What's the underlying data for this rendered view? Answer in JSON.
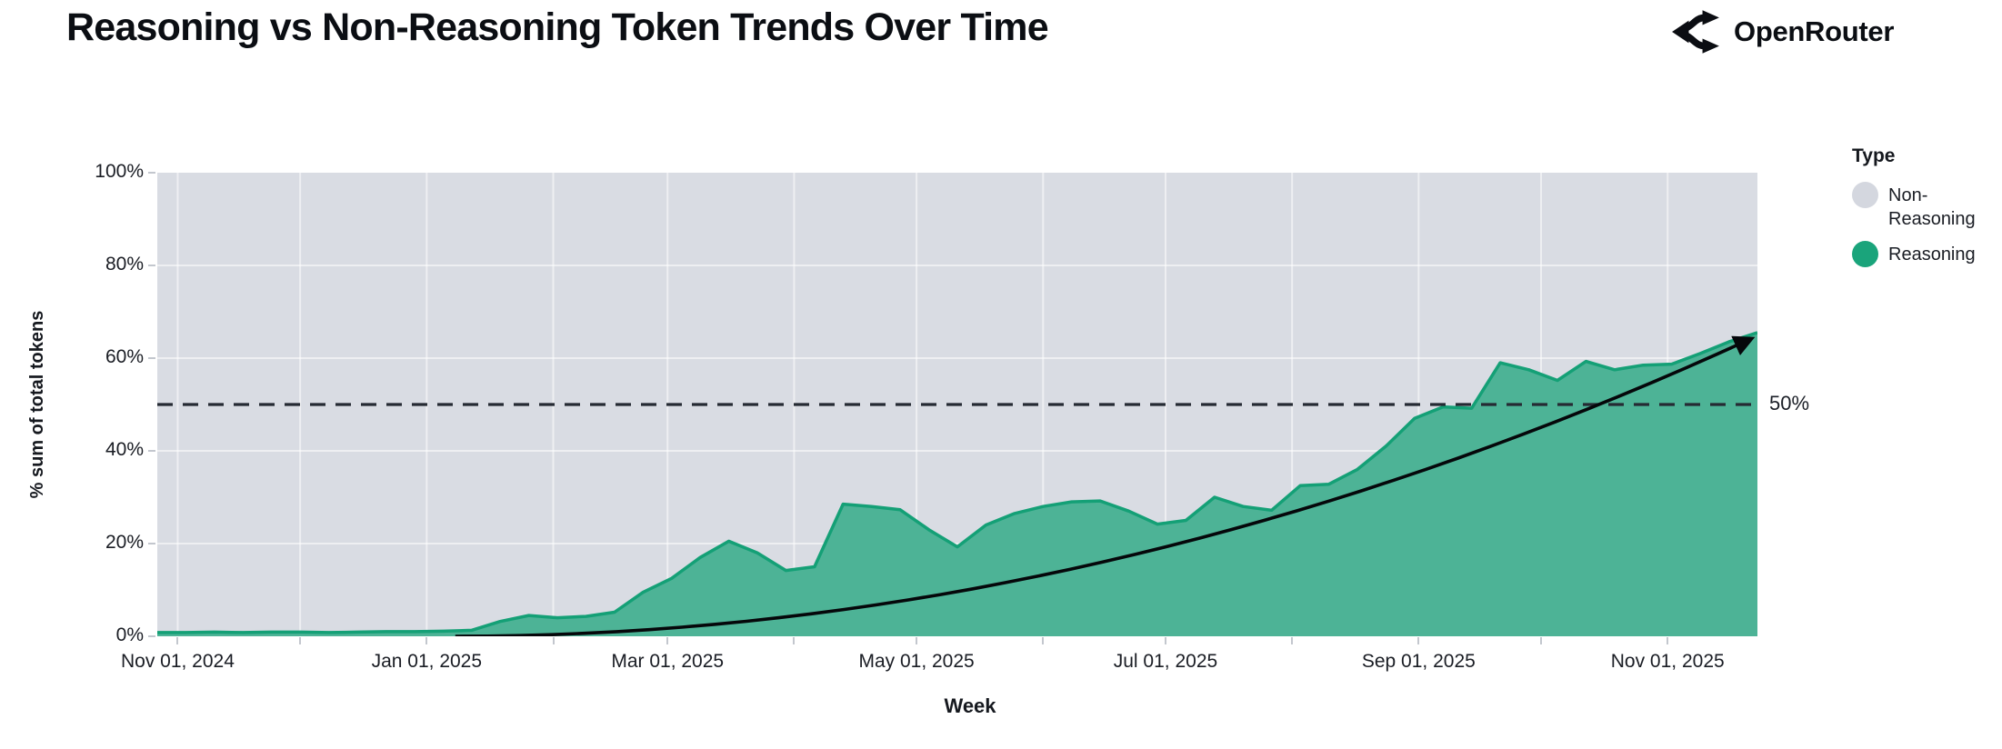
{
  "header": {
    "title": "Reasoning vs Non-Reasoning Token Trends Over Time",
    "brand_name": "OpenRouter"
  },
  "legend": {
    "title": "Type",
    "items": [
      {
        "label": "Non-Reasoning",
        "color": "#d4d7df"
      },
      {
        "label": "Reasoning",
        "color": "#1aa47b"
      }
    ]
  },
  "chart_data": {
    "type": "area",
    "subtype": "100%-stacked-weekly",
    "title": "Reasoning vs Non-Reasoning Token Trends Over Time",
    "xlabel": "Week",
    "ylabel": "% sum of total tokens",
    "ylim": [
      0,
      100
    ],
    "grid": "on",
    "legend_position": "right",
    "x_domain": {
      "start": "2024-10-27",
      "end": "2025-11-23"
    },
    "y_ticks": [
      {
        "value": 0,
        "label": "0%"
      },
      {
        "value": 20,
        "label": "20%"
      },
      {
        "value": 40,
        "label": "40%"
      },
      {
        "value": 60,
        "label": "60%"
      },
      {
        "value": 80,
        "label": "80%"
      },
      {
        "value": 100,
        "label": "100%"
      }
    ],
    "x_major_ticks": [
      {
        "date": "2024-11-01",
        "label": "Nov 01, 2024"
      },
      {
        "date": "2025-01-01",
        "label": "Jan 01, 2025"
      },
      {
        "date": "2025-03-01",
        "label": "Mar 01, 2025"
      },
      {
        "date": "2025-05-01",
        "label": "May 01, 2025"
      },
      {
        "date": "2025-07-01",
        "label": "Jul 01, 2025"
      },
      {
        "date": "2025-09-01",
        "label": "Sep 01, 2025"
      },
      {
        "date": "2025-11-01",
        "label": "Nov 01, 2025"
      }
    ],
    "x_month_ticks": [
      "2024-11-01",
      "2024-12-01",
      "2025-01-01",
      "2025-02-01",
      "2025-03-01",
      "2025-04-01",
      "2025-05-01",
      "2025-06-01",
      "2025-07-01",
      "2025-08-01",
      "2025-09-01",
      "2025-10-01",
      "2025-11-01"
    ],
    "x_weeks": [
      "2024-10-27",
      "2024-11-03",
      "2024-11-10",
      "2024-11-17",
      "2024-11-24",
      "2024-12-01",
      "2024-12-08",
      "2024-12-15",
      "2024-12-22",
      "2024-12-29",
      "2025-01-05",
      "2025-01-12",
      "2025-01-19",
      "2025-01-26",
      "2025-02-02",
      "2025-02-09",
      "2025-02-16",
      "2025-02-23",
      "2025-03-02",
      "2025-03-09",
      "2025-03-16",
      "2025-03-23",
      "2025-03-30",
      "2025-04-06",
      "2025-04-13",
      "2025-04-20",
      "2025-04-27",
      "2025-05-04",
      "2025-05-11",
      "2025-05-18",
      "2025-05-25",
      "2025-06-01",
      "2025-06-08",
      "2025-06-15",
      "2025-06-22",
      "2025-06-29",
      "2025-07-06",
      "2025-07-13",
      "2025-07-20",
      "2025-07-27",
      "2025-08-03",
      "2025-08-10",
      "2025-08-17",
      "2025-08-24",
      "2025-08-31",
      "2025-09-07",
      "2025-09-14",
      "2025-09-21",
      "2025-09-28",
      "2025-10-05",
      "2025-10-12",
      "2025-10-19",
      "2025-10-26",
      "2025-11-02",
      "2025-11-09",
      "2025-11-16",
      "2025-11-23"
    ],
    "series": [
      {
        "name": "Non-Reasoning",
        "color": "#d9dce3",
        "values_note": "complement of Reasoning at each week (100% stacked)"
      },
      {
        "name": "Reasoning",
        "fill_color": "#4db396",
        "edge_color": "#14a076",
        "values_pct": [
          0.8,
          0.8,
          0.9,
          0.8,
          0.9,
          0.9,
          0.8,
          0.9,
          1.0,
          1.0,
          1.1,
          1.3,
          3.2,
          4.5,
          4.0,
          4.3,
          5.2,
          9.5,
          12.5,
          17.0,
          20.5,
          18.0,
          14.2,
          15.0,
          28.5,
          28.0,
          27.3,
          23.0,
          19.3,
          24.0,
          26.5,
          28.0,
          29.0,
          29.2,
          27.0,
          24.2,
          25.0,
          30.0,
          28.0,
          27.2,
          32.5,
          32.8,
          36.0,
          41.0,
          47.0,
          49.5,
          49.2,
          59.0,
          57.5,
          55.2,
          59.3,
          57.5,
          58.5,
          58.7,
          61.0,
          63.5,
          65.5
        ]
      }
    ],
    "ref_line": {
      "value": 50,
      "label": "50%",
      "style": "dashed",
      "color": "#252a33"
    },
    "trend_arrow": {
      "start_date": "2025-01-08",
      "start_pct": 0,
      "end_date": "2025-11-21",
      "end_pct": 64,
      "curve": "quadratic",
      "color": "#05070a"
    },
    "plot_bg_color": "#d9dce3",
    "gridline_color": "rgba(255,255,255,0.55)"
  }
}
